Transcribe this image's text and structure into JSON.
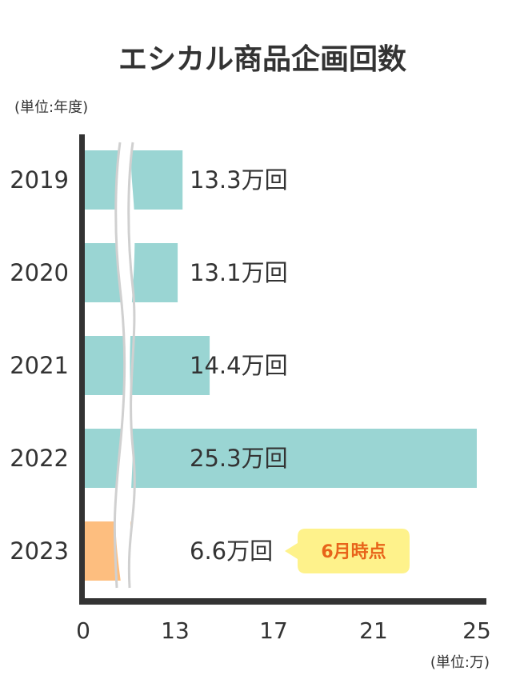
{
  "chart_data": {
    "type": "bar",
    "orientation": "horizontal",
    "title": "エシカル商品企画回数",
    "ylabel": "(単位:年度)",
    "xlabel": "(単位:万)",
    "categories": [
      "2019",
      "2020",
      "2021",
      "2022",
      "2023"
    ],
    "values": [
      13.3,
      13.1,
      14.4,
      25.3,
      6.6
    ],
    "value_labels": [
      "13.3万回",
      "13.1万回",
      "14.4万回",
      "25.3万回",
      "6.6万回"
    ],
    "x_ticks": [
      "0",
      "13",
      "17",
      "21",
      "25"
    ],
    "x_tick_values": [
      0,
      13,
      17,
      21,
      25
    ],
    "axis_break": true,
    "annotation": {
      "category": "2023",
      "text": "6月時点"
    },
    "colors": {
      "bar": "#9ad5d3",
      "highlight_bar": "#fdbe7f",
      "axis": "#333333",
      "break_line": "#d0d0d0",
      "note_bg": "#fef28b",
      "note_text": "#e8641a"
    },
    "highlight_category": "2023",
    "grid": false
  }
}
